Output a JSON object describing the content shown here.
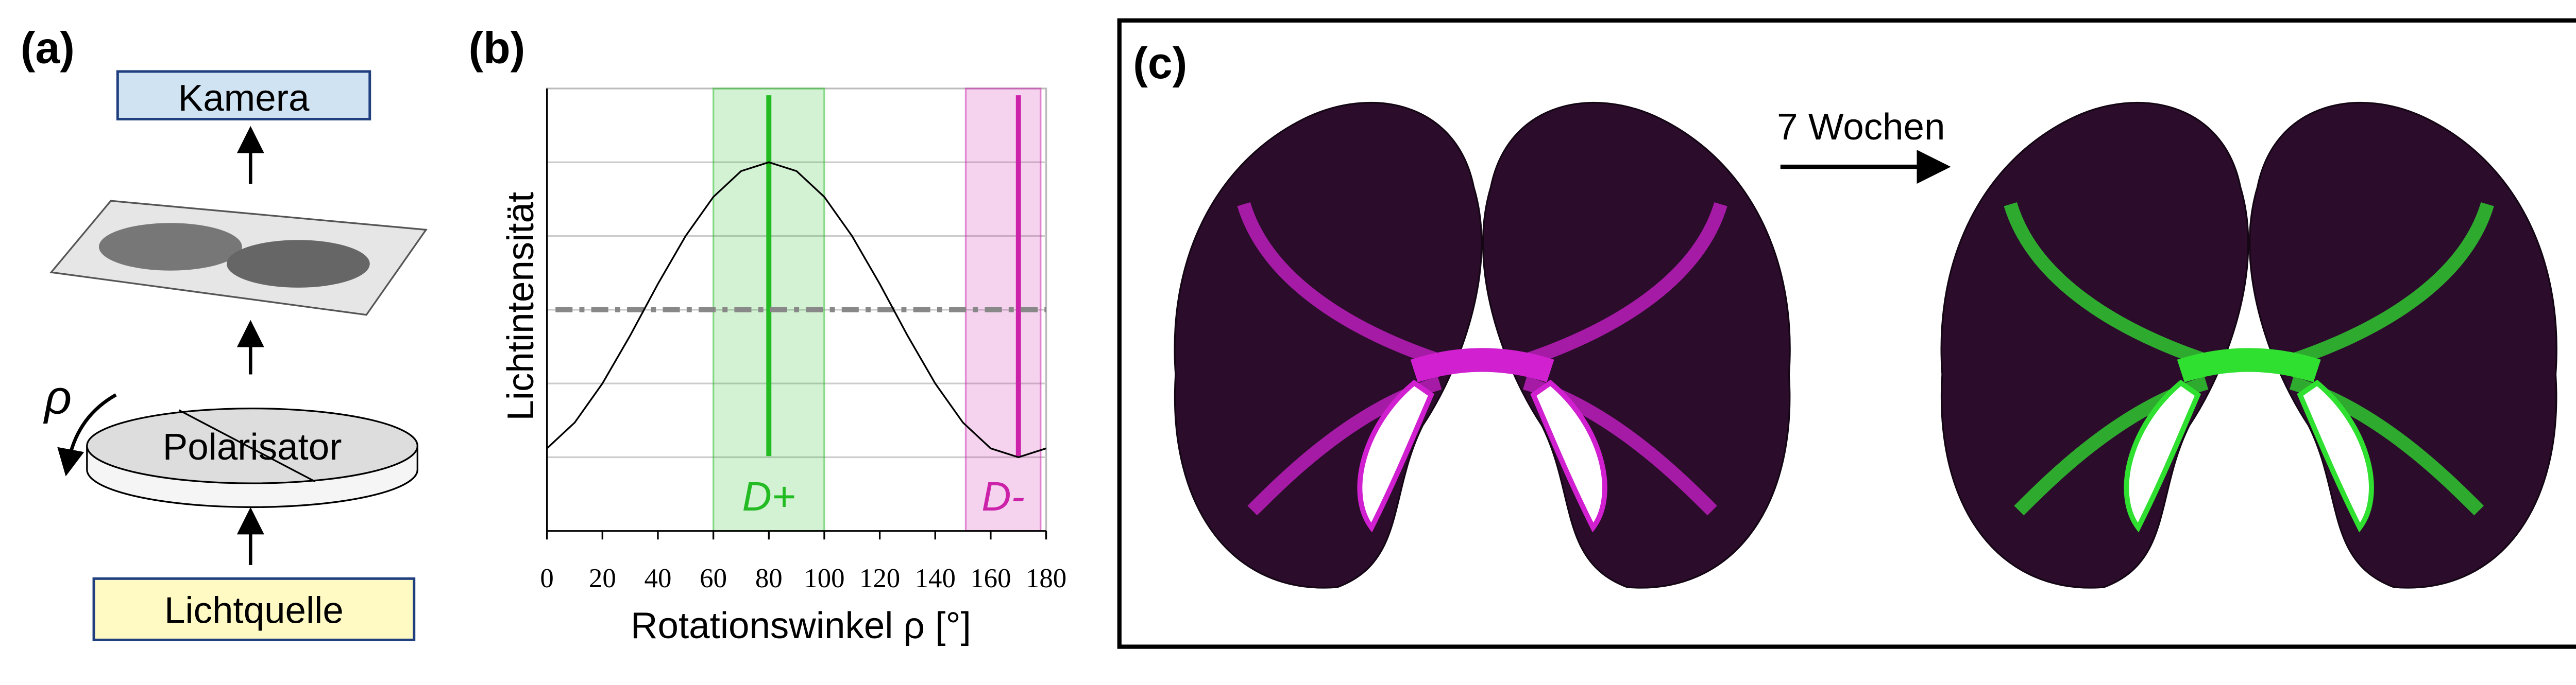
{
  "panel_a": {
    "label": "(a)",
    "camera": "Kamera",
    "rho": "ρ",
    "polarizer": "Polarisator",
    "light_source": "Lichtquelle"
  },
  "chart_data": {
    "type": "line",
    "panel_label": "(b)",
    "x_label": "Rotationswinkel ρ [°]",
    "y_label": "Lichtintensität",
    "x": [
      0,
      10,
      20,
      30,
      40,
      50,
      60,
      70,
      80,
      90,
      100,
      110,
      120,
      130,
      140,
      150,
      160,
      170,
      180
    ],
    "values": [
      1.12,
      1.47,
      2.0,
      2.65,
      3.35,
      4.0,
      4.53,
      4.88,
      5,
      4.88,
      4.53,
      4.0,
      3.35,
      2.65,
      2.0,
      1.47,
      1.12,
      1,
      1.12
    ],
    "color": "#000000",
    "xlim": [
      0,
      180
    ],
    "xticks": [
      0,
      20,
      40,
      60,
      80,
      100,
      120,
      140,
      160,
      180
    ],
    "ylim": [
      0,
      6
    ],
    "yticks": [
      1,
      2,
      3,
      4,
      5
    ],
    "grid": true,
    "mean": 3,
    "regions": [
      {
        "label": "D+",
        "from": 60,
        "to": 100,
        "peak": 80,
        "color": "#22bb22"
      },
      {
        "label": "D-",
        "from": 151,
        "to": 178,
        "peak": 170,
        "color": "#cc22aa"
      }
    ]
  },
  "panel_c": {
    "label": "(c)",
    "arrow_text": "7 Wochen"
  }
}
